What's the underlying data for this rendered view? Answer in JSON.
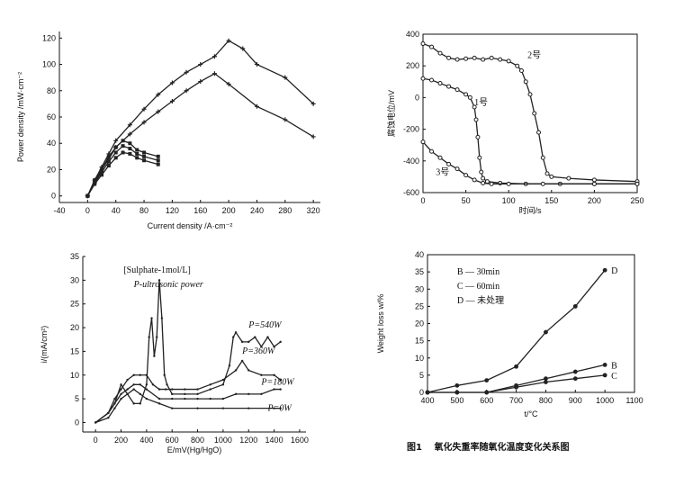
{
  "caption": {
    "number": "图1",
    "text": "氧化失重率随氧化温度变化关系图"
  },
  "chart_data": [
    {
      "type": "line",
      "xlabel": "Current density  /A·cm⁻²",
      "ylabel": "Power density  /mW·cm⁻²",
      "xlim": [
        -40,
        330
      ],
      "ylim": [
        -5,
        125
      ],
      "xticks": [
        -40,
        0,
        40,
        80,
        120,
        160,
        200,
        240,
        280,
        320
      ],
      "yticks": [
        0,
        20,
        40,
        60,
        80,
        100,
        120
      ],
      "series": [
        {
          "marker": "cross",
          "x": [
            0,
            10,
            20,
            30,
            40,
            60,
            80,
            100,
            120,
            140,
            160,
            180,
            200,
            220,
            240,
            280,
            320
          ],
          "y": [
            0,
            12,
            22,
            32,
            42,
            54,
            66,
            77,
            86,
            94,
            100,
            106,
            118,
            112,
            100,
            90,
            70
          ]
        },
        {
          "marker": "cross",
          "x": [
            0,
            10,
            20,
            30,
            40,
            60,
            80,
            100,
            120,
            140,
            160,
            180,
            200,
            240,
            280,
            320
          ],
          "y": [
            0,
            10,
            20,
            28,
            37,
            47,
            56,
            64,
            72,
            80,
            87,
            93,
            85,
            68,
            58,
            45
          ]
        },
        {
          "marker": "square",
          "x": [
            0,
            10,
            20,
            30,
            40,
            50,
            60,
            70,
            80,
            100
          ],
          "y": [
            0,
            12,
            20,
            30,
            37,
            42,
            40,
            35,
            33,
            30
          ]
        },
        {
          "marker": "square",
          "x": [
            0,
            10,
            20,
            30,
            40,
            50,
            60,
            70,
            80,
            100
          ],
          "y": [
            0,
            10,
            18,
            26,
            33,
            38,
            36,
            32,
            30,
            27
          ]
        },
        {
          "marker": "square",
          "x": [
            0,
            10,
            20,
            30,
            40,
            50,
            60,
            70,
            80,
            100
          ],
          "y": [
            0,
            9,
            16,
            23,
            29,
            33,
            32,
            29,
            27,
            24
          ]
        }
      ]
    },
    {
      "type": "line",
      "xlabel": "时间/s",
      "ylabel": "腐蚀电位/mV",
      "xlim": [
        0,
        250
      ],
      "ylim": [
        -600,
        400
      ],
      "xticks": [
        0,
        50,
        100,
        150,
        200,
        250
      ],
      "yticks": [
        -600,
        -400,
        -200,
        0,
        200,
        400
      ],
      "series": [
        {
          "name": "2号",
          "x": [
            0,
            10,
            20,
            30,
            40,
            50,
            60,
            70,
            80,
            90,
            100,
            110,
            115,
            120,
            125,
            130,
            135,
            140,
            145,
            150,
            170,
            200,
            250
          ],
          "y": [
            340,
            320,
            280,
            250,
            240,
            245,
            250,
            240,
            250,
            240,
            230,
            200,
            170,
            100,
            20,
            -100,
            -220,
            -380,
            -480,
            -500,
            -510,
            -520,
            -530
          ]
        },
        {
          "name": "1号",
          "x": [
            0,
            10,
            20,
            30,
            40,
            50,
            55,
            60,
            62,
            64,
            66,
            68,
            70,
            75,
            90,
            120,
            160,
            200,
            250
          ],
          "y": [
            120,
            110,
            90,
            70,
            50,
            20,
            0,
            -60,
            -140,
            -250,
            -380,
            -470,
            -510,
            -530,
            -540,
            -545,
            -545,
            -545,
            -545
          ]
        },
        {
          "name": "3号",
          "x": [
            0,
            10,
            20,
            30,
            40,
            50,
            60,
            70,
            80,
            100,
            140,
            200,
            250
          ],
          "y": [
            -280,
            -340,
            -380,
            -420,
            -450,
            -490,
            -520,
            -540,
            -545,
            -545,
            -545,
            -545,
            -545
          ]
        }
      ]
    },
    {
      "type": "line",
      "xlabel": "E/mV(Hg/HgO)",
      "ylabel": "i/(mA/cm²)",
      "annotation": [
        "[Sulphate-1mol/L]",
        "P-ultrosonic power"
      ],
      "xlim": [
        -100,
        1650
      ],
      "ylim": [
        -2,
        35
      ],
      "xticks": [
        0,
        200,
        400,
        600,
        800,
        1000,
        1200,
        1400,
        1600
      ],
      "yticks": [
        0,
        5,
        10,
        15,
        20,
        25,
        30,
        35
      ],
      "series": [
        {
          "name": "P=540W",
          "x": [
            0,
            100,
            150,
            200,
            250,
            300,
            350,
            400,
            420,
            440,
            460,
            480,
            500,
            520,
            540,
            560,
            600,
            700,
            800,
            900,
            1000,
            1050,
            1080,
            1100,
            1150,
            1200,
            1250,
            1300,
            1350,
            1400,
            1450
          ],
          "y": [
            0,
            2,
            4,
            8,
            6,
            4,
            4,
            8,
            18,
            22,
            14,
            18,
            30,
            22,
            10,
            8,
            6,
            6,
            6,
            7,
            8,
            12,
            18,
            19,
            17,
            17,
            18,
            16,
            18,
            16,
            17
          ]
        },
        {
          "name": "P=360W",
          "x": [
            0,
            100,
            150,
            200,
            250,
            300,
            350,
            400,
            450,
            500,
            550,
            600,
            700,
            800,
            900,
            1000,
            1100,
            1150,
            1200,
            1300,
            1400,
            1450
          ],
          "y": [
            0,
            2,
            5,
            7,
            9,
            10,
            10,
            10,
            8,
            7,
            7,
            7,
            7,
            7,
            8,
            9,
            11,
            13,
            11,
            10,
            10,
            9
          ]
        },
        {
          "name": "P=180W",
          "x": [
            0,
            100,
            150,
            200,
            250,
            300,
            350,
            400,
            500,
            600,
            700,
            800,
            900,
            1000,
            1100,
            1200,
            1300,
            1400,
            1450
          ],
          "y": [
            0,
            2,
            4,
            6,
            7,
            8,
            8,
            7,
            5,
            5,
            5,
            5,
            5,
            5,
            6,
            6,
            6,
            7,
            7
          ]
        },
        {
          "name": "P=0W",
          "x": [
            0,
            100,
            150,
            200,
            250,
            300,
            350,
            400,
            500,
            600,
            800,
            1000,
            1200,
            1400,
            1450
          ],
          "y": [
            0,
            1,
            3,
            5,
            6,
            7,
            6,
            5,
            4,
            3,
            3,
            3,
            3,
            3,
            3
          ]
        }
      ]
    },
    {
      "type": "line",
      "xlabel": "t/°C",
      "ylabel": "Weight loss  w/%",
      "legend": [
        "B — 30min",
        "C — 60min",
        "D — 未处理"
      ],
      "xlim": [
        400,
        1100
      ],
      "ylim": [
        0,
        40
      ],
      "xticks": [
        400,
        500,
        600,
        700,
        800,
        900,
        1000,
        1100
      ],
      "yticks": [
        0,
        5,
        10,
        15,
        20,
        25,
        30,
        35,
        40
      ],
      "series": [
        {
          "name": "D",
          "x": [
            400,
            500,
            600,
            700,
            800,
            900,
            1000
          ],
          "y": [
            0,
            2,
            3.5,
            7.5,
            17.5,
            25,
            35.5
          ]
        },
        {
          "name": "B",
          "x": [
            400,
            500,
            600,
            700,
            800,
            900,
            1000
          ],
          "y": [
            0,
            0,
            0,
            2,
            4,
            6,
            8
          ]
        },
        {
          "name": "C",
          "x": [
            400,
            500,
            600,
            700,
            800,
            900,
            1000
          ],
          "y": [
            0,
            0,
            0,
            1.5,
            3,
            4,
            5
          ]
        }
      ]
    }
  ]
}
